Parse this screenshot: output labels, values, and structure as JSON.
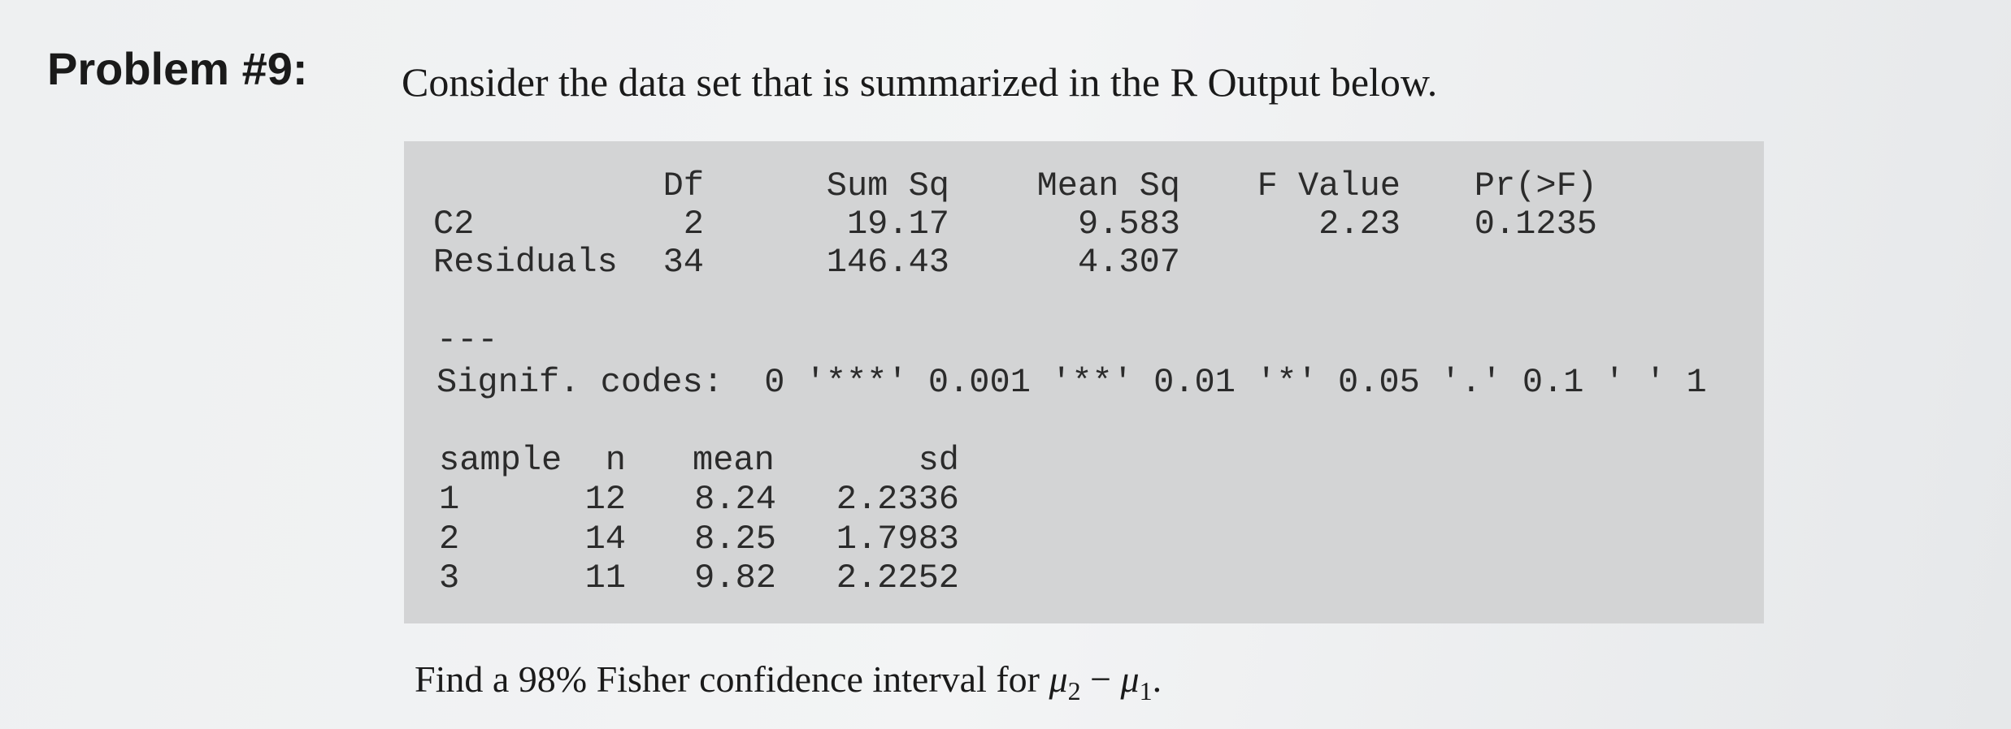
{
  "header": {
    "label": "Problem #9:",
    "text": "Consider the data set that is summarized in the R Output below."
  },
  "anova": {
    "columns": [
      "Df",
      "Sum Sq",
      "Mean Sq",
      "F Value",
      "Pr(>F)"
    ],
    "rows": [
      [
        "C2",
        "2",
        "19.17",
        "9.583",
        "2.23",
        "0.1235"
      ],
      [
        "Residuals",
        "34",
        "146.43",
        "4.307"
      ]
    ]
  },
  "separator": "---",
  "signif_codes": "Signif. codes:  0 '***' 0.001 '**' 0.01 '*' 0.05 '.' 0.1 ' ' 1",
  "samples": {
    "columns": [
      "sample",
      "n",
      "mean",
      "sd"
    ],
    "rows": [
      [
        "1",
        "12",
        "8.24",
        "2.2336"
      ],
      [
        "2",
        "14",
        "8.25",
        "1.7983"
      ],
      [
        "3",
        "11",
        "9.82",
        "2.2252"
      ]
    ]
  },
  "question": {
    "text": "Find a 98% Fisher confidence interval for",
    "first": {
      "symbol": "μ",
      "subscript": "2"
    },
    "operator": "−",
    "second": {
      "symbol": "μ",
      "subscript": "1"
    },
    "end": "."
  }
}
